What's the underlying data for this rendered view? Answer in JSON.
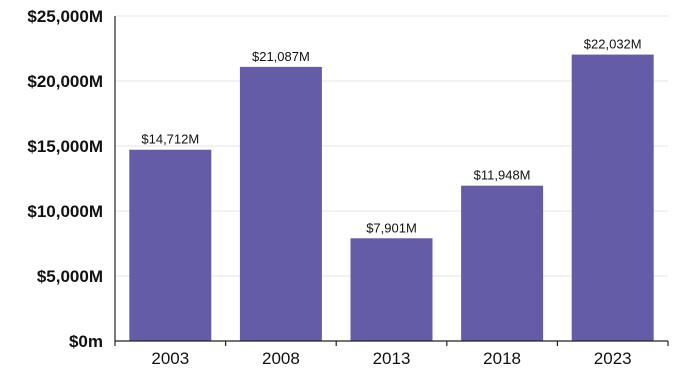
{
  "chart_data": {
    "type": "bar",
    "categories": [
      "2003",
      "2008",
      "2013",
      "2018",
      "2023"
    ],
    "values": [
      14712,
      21087,
      7901,
      11948,
      22032
    ],
    "data_labels": [
      "$14,712M",
      "$21,087M",
      "$7,901M",
      "$11,948M",
      "$22,032M"
    ],
    "ylim": [
      0,
      25000
    ],
    "yticks": [
      0,
      5000,
      10000,
      15000,
      20000,
      25000
    ],
    "ytick_labels": [
      "$0m",
      "$5,000M",
      "$10,000M",
      "$15,000M",
      "$20,000M",
      "$25,000M"
    ],
    "grid": true,
    "bar_color": "#655ca8"
  }
}
